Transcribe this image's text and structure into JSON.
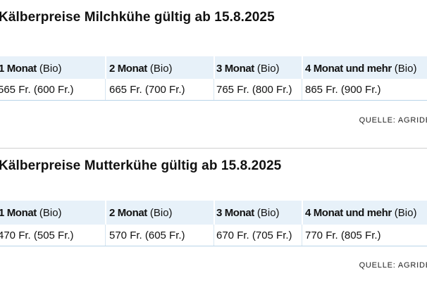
{
  "tables": [
    {
      "title": "Kälberpreise Milchkühe gültig ab 15.8.2025",
      "columns": [
        {
          "label": "1 Monat",
          "suffix": "(Bio)"
        },
        {
          "label": "2 Monat",
          "suffix": "(Bio)"
        },
        {
          "label": "3 Monat",
          "suffix": "(Bio)"
        },
        {
          "label": "4 Monat und mehr",
          "suffix": "(Bio)"
        }
      ],
      "values": [
        "565 Fr. (600 Fr.)",
        "665 Fr. (700 Fr.)",
        "765 Fr. (800 Fr.)",
        "865 Fr. (900 Fr.)"
      ],
      "source": "QUELLE: AGRIDEA"
    },
    {
      "title": "Kälberpreise Mutterkühe gültig ab 15.8.2025",
      "columns": [
        {
          "label": "1 Monat",
          "suffix": "(Bio)"
        },
        {
          "label": "2 Monat",
          "suffix": "(Bio)"
        },
        {
          "label": "3 Monat",
          "suffix": "(Bio)"
        },
        {
          "label": "4 Monat und mehr",
          "suffix": "(Bio)"
        }
      ],
      "values": [
        "470 Fr. (505 Fr.)",
        "570 Fr. (605 Fr.)",
        "670 Fr. (705 Fr.)",
        "770 Fr. (805 Fr.)"
      ],
      "source": "QUELLE: AGRIDEA"
    }
  ],
  "colors": {
    "header_bg": "#e7f1f9",
    "row_border": "#b8d4e8",
    "text": "#111111"
  }
}
